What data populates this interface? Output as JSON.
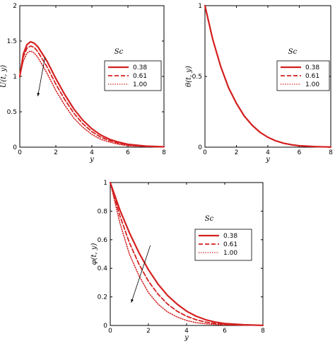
{
  "colors": {
    "curve": "#d42020",
    "axis": "#000000",
    "frame": "#000000"
  },
  "chart_data": [
    {
      "type": "line",
      "ylabel": "U(t, y)",
      "xlabel": "y",
      "xlim": [
        0,
        8
      ],
      "ylim": [
        0,
        2
      ],
      "xticks": [
        "0",
        "2",
        "4",
        "6",
        "8"
      ],
      "yticks": [
        "0",
        "0.5",
        "1",
        "1.5",
        "2"
      ],
      "legend_title": "Sc",
      "legend_placement": "right-middle",
      "grid": false,
      "series": [
        {
          "name": "0.38",
          "style": "solid",
          "x": [
            0,
            0.2,
            0.4,
            0.6,
            0.8,
            1,
            1.5,
            2,
            2.5,
            3,
            3.5,
            4,
            4.5,
            5,
            5.5,
            6,
            7,
            8
          ],
          "y": [
            1.0,
            1.32,
            1.45,
            1.49,
            1.47,
            1.42,
            1.22,
            0.97,
            0.74,
            0.54,
            0.38,
            0.26,
            0.17,
            0.11,
            0.07,
            0.04,
            0.015,
            0.005
          ]
        },
        {
          "name": "0.61",
          "style": "dashed",
          "x": [
            0,
            0.2,
            0.4,
            0.6,
            0.8,
            1,
            1.5,
            2,
            2.5,
            3,
            3.5,
            4,
            4.5,
            5,
            5.5,
            6,
            7,
            8
          ],
          "y": [
            1.0,
            1.28,
            1.4,
            1.43,
            1.41,
            1.35,
            1.14,
            0.89,
            0.67,
            0.48,
            0.33,
            0.22,
            0.14,
            0.09,
            0.055,
            0.03,
            0.01,
            0.004
          ]
        },
        {
          "name": "1.00",
          "style": "dotted",
          "x": [
            0,
            0.2,
            0.4,
            0.6,
            0.8,
            1,
            1.5,
            2,
            2.5,
            3,
            3.5,
            4,
            4.5,
            5,
            5.5,
            6,
            7,
            8
          ],
          "y": [
            1.0,
            1.22,
            1.33,
            1.36,
            1.33,
            1.27,
            1.05,
            0.8,
            0.59,
            0.41,
            0.28,
            0.18,
            0.11,
            0.07,
            0.04,
            0.02,
            0.008,
            0.003
          ]
        }
      ],
      "arrow": {
        "from": [
          1.4,
          1.27
        ],
        "to": [
          1.0,
          0.72
        ]
      }
    },
    {
      "type": "line",
      "ylabel": "θ(t, y)",
      "xlabel": "y",
      "xlim": [
        0,
        8
      ],
      "ylim": [
        0,
        1
      ],
      "xticks": [
        "0",
        "2",
        "4",
        "6",
        "8"
      ],
      "yticks": [
        "0",
        "0.5",
        "1"
      ],
      "legend_title": "Sc",
      "legend_placement": "right-middle",
      "grid": false,
      "series": [
        {
          "name": "0.38",
          "style": "solid",
          "x": [
            0,
            0.5,
            1,
            1.5,
            2,
            2.5,
            3,
            3.5,
            4,
            4.5,
            5,
            5.5,
            6,
            7,
            8
          ],
          "y": [
            1.0,
            0.76,
            0.57,
            0.42,
            0.31,
            0.22,
            0.155,
            0.105,
            0.07,
            0.045,
            0.028,
            0.017,
            0.01,
            0.004,
            0.001
          ]
        },
        {
          "name": "0.61",
          "style": "dashed",
          "x": [
            0,
            0.5,
            1,
            1.5,
            2,
            2.5,
            3,
            3.5,
            4,
            4.5,
            5,
            5.5,
            6,
            7,
            8
          ],
          "y": [
            1.0,
            0.76,
            0.57,
            0.42,
            0.31,
            0.22,
            0.155,
            0.105,
            0.07,
            0.045,
            0.028,
            0.017,
            0.01,
            0.004,
            0.001
          ]
        },
        {
          "name": "1.00",
          "style": "dotted",
          "x": [
            0,
            0.5,
            1,
            1.5,
            2,
            2.5,
            3,
            3.5,
            4,
            4.5,
            5,
            5.5,
            6,
            7,
            8
          ],
          "y": [
            1.0,
            0.76,
            0.57,
            0.42,
            0.31,
            0.22,
            0.155,
            0.105,
            0.07,
            0.045,
            0.028,
            0.017,
            0.01,
            0.004,
            0.001
          ]
        }
      ]
    },
    {
      "type": "line",
      "ylabel": "φ(t, y)",
      "xlabel": "y",
      "xlim": [
        0,
        8
      ],
      "ylim": [
        0,
        1
      ],
      "xticks": [
        "0",
        "2",
        "4",
        "6",
        "8"
      ],
      "yticks": [
        "0",
        "0.2",
        "0.4",
        "0.6",
        "0.8",
        "1"
      ],
      "legend_title": "Sc",
      "legend_placement": "right-upper",
      "grid": false,
      "series": [
        {
          "name": "0.38",
          "style": "solid",
          "x": [
            0,
            0.5,
            1,
            1.5,
            2,
            2.5,
            3,
            3.5,
            4,
            4.5,
            5,
            5.5,
            6,
            7,
            8
          ],
          "y": [
            1.0,
            0.81,
            0.65,
            0.51,
            0.39,
            0.29,
            0.21,
            0.15,
            0.1,
            0.065,
            0.04,
            0.024,
            0.014,
            0.005,
            0.001
          ]
        },
        {
          "name": "0.61",
          "style": "dashed",
          "x": [
            0,
            0.5,
            1,
            1.5,
            2,
            2.5,
            3,
            3.5,
            4,
            4.5,
            5,
            5.5,
            6,
            7,
            8
          ],
          "y": [
            1.0,
            0.77,
            0.58,
            0.43,
            0.31,
            0.22,
            0.15,
            0.1,
            0.065,
            0.04,
            0.024,
            0.014,
            0.008,
            0.003,
            0.001
          ]
        },
        {
          "name": "1.00",
          "style": "dotted",
          "x": [
            0,
            0.5,
            1,
            1.5,
            2,
            2.5,
            3,
            3.5,
            4,
            4.5,
            5,
            5.5,
            6,
            7,
            8
          ],
          "y": [
            1.0,
            0.72,
            0.5,
            0.35,
            0.23,
            0.15,
            0.095,
            0.06,
            0.035,
            0.02,
            0.012,
            0.007,
            0.004,
            0.0015,
            0.0005
          ]
        }
      ],
      "arrow": {
        "from": [
          2.1,
          0.56
        ],
        "to": [
          1.1,
          0.16
        ]
      }
    }
  ]
}
